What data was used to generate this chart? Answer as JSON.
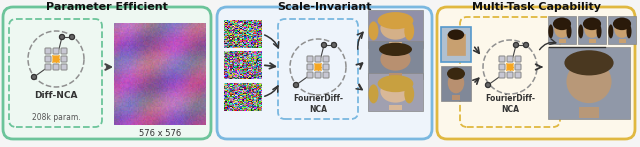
{
  "title_left": "Parameter Efficient",
  "title_center": "Scale-Invariant",
  "title_right": "Multi-Task Capability",
  "label_diff_nca": "Diff-NCA",
  "label_208k": "208k param.",
  "label_576": "576 x 576",
  "label_fourier1": "FourierDiff-\nNCA",
  "label_fourier2": "FourierDiff-\nNCA",
  "box_left_color": "#6cc49a",
  "box_center_color": "#7ab8e0",
  "box_right_color": "#e0b840",
  "bg_color": "#f5f5f5",
  "orange_color": "#f5a623",
  "fig_width": 6.4,
  "fig_height": 1.47
}
